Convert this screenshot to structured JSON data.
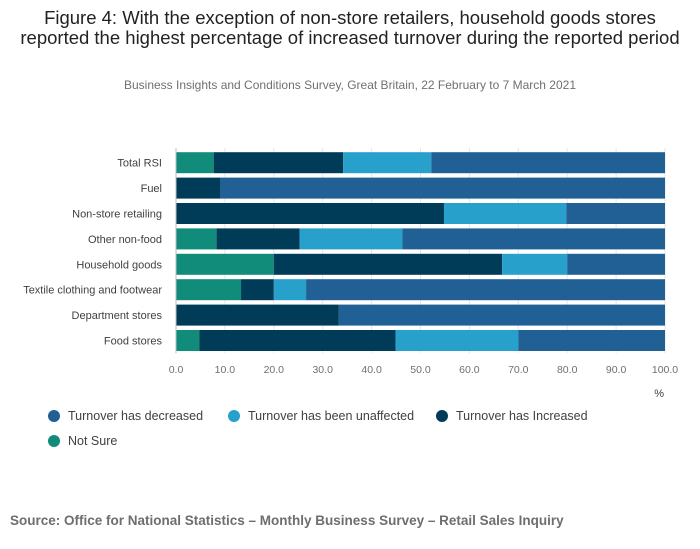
{
  "title": "Figure 4: With the exception of non-store retailers, household goods stores reported the highest percentage of increased turnover during the reported period",
  "subtitle": "Business Insights and Conditions Survey, Great Britain, 22 February to 7 March 2021",
  "source": "Source: Office for National Statistics – Monthly Business Survey – Retail Sales Inquiry",
  "chart_data": {
    "type": "bar",
    "orientation": "horizontal",
    "stacked": true,
    "categories": [
      "Total RSI",
      "Fuel",
      "Non-store retailing",
      "Other non-food",
      "Household goods",
      "Textile clothing and footwear",
      "Department stores",
      "Food stores"
    ],
    "series": [
      {
        "name": "Not Sure",
        "color": "#118c7b",
        "values": [
          7.7,
          0,
          0,
          8.3,
          20.0,
          13.3,
          0,
          4.8
        ]
      },
      {
        "name": "Turnover has Increased",
        "color": "#003c57",
        "values": [
          26.5,
          9.0,
          54.8,
          17.0,
          46.7,
          6.7,
          33.3,
          40.1
        ]
      },
      {
        "name": "Turnover has been unaffected",
        "color": "#27a0cc",
        "values": [
          18.0,
          0,
          25.0,
          21.0,
          13.3,
          6.6,
          0,
          25.1
        ]
      },
      {
        "name": "Turnover has decreased",
        "color": "#206095",
        "values": [
          47.8,
          91.0,
          20.2,
          53.7,
          20.0,
          73.4,
          66.7,
          30.0
        ]
      }
    ],
    "xlim": [
      0,
      100
    ],
    "xticks": [
      "0.0",
      "10.0",
      "20.0",
      "30.0",
      "40.0",
      "50.0",
      "60.0",
      "70.0",
      "80.0",
      "90.0",
      "100.0"
    ],
    "xlabel": "%",
    "legend": [
      {
        "name": "Turnover has decreased",
        "color": "#206095"
      },
      {
        "name": "Turnover has been unaffected",
        "color": "#27a0cc"
      },
      {
        "name": "Turnover has Increased",
        "color": "#003c57"
      },
      {
        "name": "Not Sure",
        "color": "#118c7b"
      }
    ]
  }
}
